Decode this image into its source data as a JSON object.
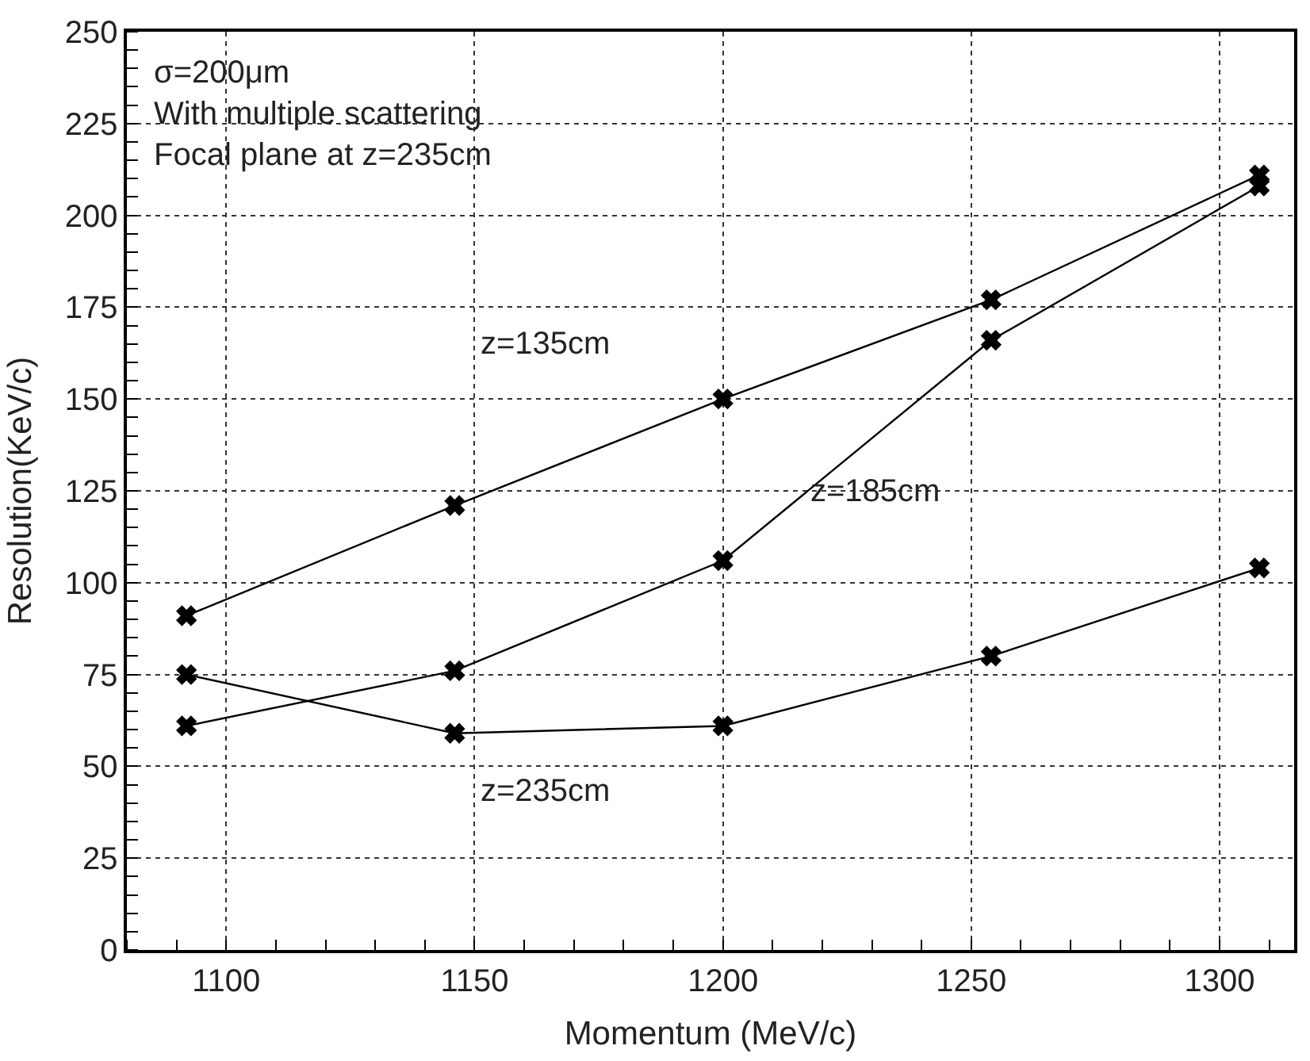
{
  "chart_data": {
    "type": "line",
    "xlabel": "Momentum (MeV/c)",
    "ylabel": "Resolution(KeV/c)",
    "x": [
      1092,
      1146,
      1200,
      1254,
      1308
    ],
    "series": [
      {
        "color": "#000000",
        "values": [
          91,
          121,
          150,
          177,
          211
        ]
      },
      {
        "color": "#000000",
        "values": [
          61,
          76,
          106,
          166,
          208
        ]
      },
      {
        "color": "#000000",
        "values": [
          75,
          59,
          61,
          80,
          104
        ]
      }
    ],
    "xlim": [
      1080,
      1315
    ],
    "xticks": [
      1100,
      1150,
      1200,
      1250,
      1300
    ],
    "ylim": [
      0,
      250
    ],
    "yticks": [
      0,
      25,
      50,
      75,
      100,
      125,
      150,
      175,
      200,
      225,
      250
    ],
    "grid": true,
    "marker": "cross",
    "line_style": "solid",
    "annotations": [
      "σ=200μm",
      "With multiple scattering",
      "Focal plane at z=235cm",
      "z=135cm",
      {
        "text": "z=185cm",
        "x": 1217,
        "y": 125
      },
      "z=235cm"
    ]
  }
}
